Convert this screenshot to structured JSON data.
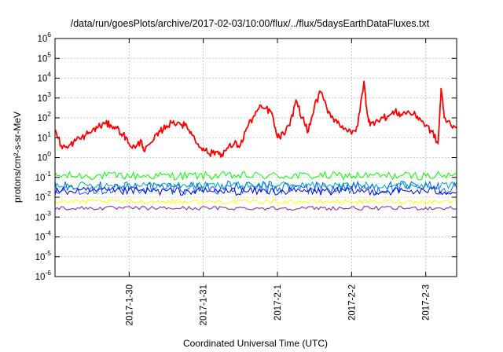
{
  "chart_data": {
    "type": "line",
    "title": "/data/run/goesPlots/archive/2017-02-03/10:00/flux/../flux/5daysEarthDataFluxes.txt",
    "xlabel": "Coordinated Universal Time (UTC)",
    "ylabel": "protons/cm²-s-sr-MeV",
    "yscale": "log",
    "ylim": [
      1e-06,
      1000000.0
    ],
    "xlim": [
      "2017-01-29 00:00",
      "2017-02-03 10:00"
    ],
    "grid": true,
    "legend": "none",
    "y_ticks": [
      {
        "base": "10",
        "exp": "-6"
      },
      {
        "base": "10",
        "exp": "-5"
      },
      {
        "base": "10",
        "exp": "-4"
      },
      {
        "base": "10",
        "exp": "-3"
      },
      {
        "base": "10",
        "exp": "-2"
      },
      {
        "base": "10",
        "exp": "-1"
      },
      {
        "base": "10",
        "exp": "0"
      },
      {
        "base": "10",
        "exp": "1"
      },
      {
        "base": "10",
        "exp": "2"
      },
      {
        "base": "10",
        "exp": "3"
      },
      {
        "base": "10",
        "exp": "4"
      },
      {
        "base": "10",
        "exp": "5"
      },
      {
        "base": "10",
        "exp": "6"
      }
    ],
    "x_ticks": [
      {
        "label": "2017-1-30",
        "date": "2017-01-30 00:00"
      },
      {
        "label": "2017-1-31",
        "date": "2017-01-31 00:00"
      },
      {
        "label": "2017-2-1",
        "date": "2017-02-01 00:00"
      },
      {
        "label": "2017-2-2",
        "date": "2017-02-02 00:00"
      },
      {
        "label": "2017-2-3",
        "date": "2017-02-03 00:00"
      }
    ],
    "series": [
      {
        "color": "#ff0000",
        "points": [
          [
            "2017-01-29 00:00",
            25
          ],
          [
            "2017-01-29 02:00",
            4
          ],
          [
            "2017-01-29 04:00",
            3
          ],
          [
            "2017-01-29 06:00",
            6
          ],
          [
            "2017-01-29 08:00",
            9
          ],
          [
            "2017-01-29 10:00",
            14
          ],
          [
            "2017-01-29 12:00",
            22
          ],
          [
            "2017-01-29 14:00",
            35
          ],
          [
            "2017-01-29 16:00",
            50
          ],
          [
            "2017-01-29 18:00",
            45
          ],
          [
            "2017-01-29 20:00",
            30
          ],
          [
            "2017-01-29 22:00",
            15
          ],
          [
            "2017-01-30 00:00",
            5
          ],
          [
            "2017-01-30 02:00",
            3
          ],
          [
            "2017-01-30 04:00",
            7
          ],
          [
            "2017-01-30 05:00",
            2
          ],
          [
            "2017-01-30 08:00",
            8
          ],
          [
            "2017-01-30 10:00",
            20
          ],
          [
            "2017-01-30 12:00",
            40
          ],
          [
            "2017-01-30 14:00",
            55
          ],
          [
            "2017-01-30 16:00",
            60
          ],
          [
            "2017-01-30 18:00",
            40
          ],
          [
            "2017-01-30 20:00",
            20
          ],
          [
            "2017-01-30 22:00",
            5
          ],
          [
            "2017-01-31 00:00",
            3
          ],
          [
            "2017-01-31 02:00",
            1.5
          ],
          [
            "2017-01-31 04:00",
            2
          ],
          [
            "2017-01-31 06:00",
            1.5
          ],
          [
            "2017-01-31 08:00",
            3
          ],
          [
            "2017-01-31 10:00",
            5
          ],
          [
            "2017-01-31 12:00",
            4
          ],
          [
            "2017-01-31 14:00",
            30
          ],
          [
            "2017-01-31 16:00",
            100
          ],
          [
            "2017-01-31 18:00",
            300
          ],
          [
            "2017-01-31 20:00",
            300
          ],
          [
            "2017-01-31 22:00",
            200
          ],
          [
            "2017-02-01 00:00",
            10
          ],
          [
            "2017-02-01 02:00",
            15
          ],
          [
            "2017-02-01 04:00",
            40
          ],
          [
            "2017-02-01 06:00",
            800
          ],
          [
            "2017-02-01 08:00",
            100
          ],
          [
            "2017-02-01 10:00",
            20
          ],
          [
            "2017-02-01 12:00",
            400
          ],
          [
            "2017-02-01 14:00",
            2000
          ],
          [
            "2017-02-01 16:00",
            300
          ],
          [
            "2017-02-01 18:00",
            100
          ],
          [
            "2017-02-01 20:00",
            50
          ],
          [
            "2017-02-01 22:00",
            30
          ],
          [
            "2017-02-02 00:00",
            15
          ],
          [
            "2017-02-02 02:00",
            40
          ],
          [
            "2017-02-02 04:00",
            7000
          ],
          [
            "2017-02-02 05:00",
            200
          ],
          [
            "2017-02-02 06:00",
            40
          ],
          [
            "2017-02-02 08:00",
            80
          ],
          [
            "2017-02-02 10:00",
            100
          ],
          [
            "2017-02-02 12:00",
            120
          ],
          [
            "2017-02-02 14:00",
            200
          ],
          [
            "2017-02-02 16:00",
            150
          ],
          [
            "2017-02-02 18:00",
            200
          ],
          [
            "2017-02-02 20:00",
            150
          ],
          [
            "2017-02-02 22:00",
            100
          ],
          [
            "2017-02-03 00:00",
            40
          ],
          [
            "2017-02-03 02:00",
            20
          ],
          [
            "2017-02-03 04:00",
            5
          ],
          [
            "2017-02-03 05:00",
            3000
          ],
          [
            "2017-02-03 06:00",
            100
          ],
          [
            "2017-02-03 08:00",
            50
          ],
          [
            "2017-02-03 10:00",
            35
          ]
        ]
      },
      {
        "color": "#00ff00",
        "level": 0.12,
        "spread": 1.6
      },
      {
        "color": "#00aaaa",
        "level": 0.04,
        "spread": 1.5
      },
      {
        "color": "#0060ff",
        "level": 0.03,
        "spread": 2.2
      },
      {
        "color": "#0000dd",
        "level": 0.02,
        "spread": 1.6
      },
      {
        "color": "#ffff00",
        "level": 0.006,
        "spread": 1.3
      },
      {
        "color": "#8b1a8b",
        "level": 0.0028,
        "spread": 1.25
      }
    ]
  }
}
